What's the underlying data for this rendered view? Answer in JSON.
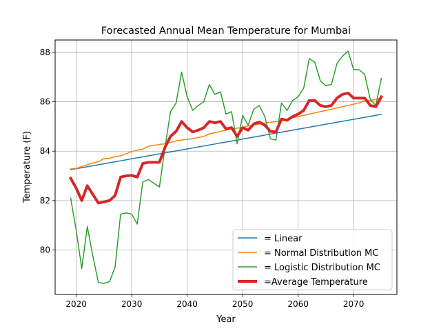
{
  "chart_data": {
    "type": "line",
    "title": "Forecasted Annual Mean Temperature for Mumbai",
    "xlabel": "Year",
    "ylabel": "Temperature (F)",
    "xlim": [
      2016.2,
      2077.8
    ],
    "ylim": [
      78.2,
      88.5
    ],
    "xticks": [
      2020,
      2030,
      2040,
      2050,
      2060,
      2070
    ],
    "yticks": [
      80,
      82,
      84,
      86,
      88
    ],
    "grid": true,
    "legend_position": "lower-right",
    "x": [
      2019,
      2020,
      2021,
      2022,
      2023,
      2024,
      2025,
      2026,
      2027,
      2028,
      2029,
      2030,
      2031,
      2032,
      2033,
      2034,
      2035,
      2036,
      2037,
      2038,
      2039,
      2040,
      2041,
      2042,
      2043,
      2044,
      2045,
      2046,
      2047,
      2048,
      2049,
      2050,
      2051,
      2052,
      2053,
      2054,
      2055,
      2056,
      2057,
      2058,
      2059,
      2060,
      2061,
      2062,
      2063,
      2064,
      2065,
      2066,
      2067,
      2068,
      2069,
      2070,
      2071,
      2072,
      2073,
      2074,
      2075
    ],
    "series": [
      {
        "name": "= Linear",
        "color": "#1f77b4",
        "width": 1.5,
        "values": [
          83.25,
          83.29,
          83.33,
          83.37,
          83.41,
          83.45,
          83.49,
          83.53,
          83.57,
          83.61,
          83.65,
          83.69,
          83.73,
          83.77,
          83.81,
          83.85,
          83.89,
          83.93,
          83.97,
          84.01,
          84.05,
          84.09,
          84.13,
          84.17,
          84.21,
          84.25,
          84.29,
          84.33,
          84.37,
          84.41,
          84.45,
          84.49,
          84.53,
          84.57,
          84.61,
          84.65,
          84.69,
          84.73,
          84.77,
          84.81,
          84.85,
          84.89,
          84.93,
          84.97,
          85.01,
          85.05,
          85.09,
          85.13,
          85.17,
          85.21,
          85.25,
          85.29,
          85.33,
          85.37,
          85.41,
          85.45,
          85.49
        ]
      },
      {
        "name": "= Normal Distribution MC",
        "color": "#ff7f0e",
        "width": 1.5,
        "values": [
          83.28,
          83.3,
          83.38,
          83.45,
          83.52,
          83.57,
          83.7,
          83.71,
          83.78,
          83.81,
          83.9,
          83.98,
          84.04,
          84.08,
          84.2,
          84.23,
          84.27,
          84.3,
          84.35,
          84.42,
          84.45,
          84.48,
          84.51,
          84.55,
          84.6,
          84.7,
          84.75,
          84.8,
          84.85,
          84.9,
          84.93,
          84.96,
          85.02,
          85.06,
          85.1,
          85.14,
          85.17,
          85.2,
          85.22,
          85.3,
          85.35,
          85.4,
          85.45,
          85.5,
          85.55,
          85.6,
          85.65,
          85.7,
          85.75,
          85.8,
          85.85,
          85.9,
          85.95,
          86.05,
          86.05,
          86.1,
          86.15
        ]
      },
      {
        "name": "= Logistic Distribution MC",
        "color": "#2ca02c",
        "width": 1.5,
        "values": [
          82.1,
          80.8,
          79.25,
          80.95,
          79.75,
          78.68,
          78.65,
          78.72,
          79.3,
          81.45,
          81.5,
          81.45,
          81.05,
          82.75,
          82.85,
          82.7,
          82.55,
          84.15,
          85.6,
          85.95,
          87.2,
          86.2,
          85.65,
          85.85,
          86.0,
          86.7,
          86.3,
          86.4,
          85.5,
          85.6,
          84.3,
          85.45,
          85.05,
          85.7,
          85.85,
          85.4,
          84.5,
          84.45,
          85.95,
          85.65,
          86.05,
          86.2,
          86.55,
          87.75,
          87.6,
          86.85,
          86.65,
          86.7,
          87.55,
          87.85,
          88.05,
          87.3,
          87.3,
          87.1,
          86.1,
          85.85,
          86.95
        ]
      },
      {
        "name": "=Average Temperature",
        "color": "#d62728",
        "width": 4,
        "values": [
          82.9,
          82.5,
          82.0,
          82.6,
          82.25,
          81.9,
          81.95,
          82.0,
          82.2,
          82.95,
          83.0,
          83.02,
          82.95,
          83.5,
          83.55,
          83.55,
          83.55,
          84.15,
          84.6,
          84.8,
          85.2,
          84.95,
          84.78,
          84.85,
          84.95,
          85.2,
          85.15,
          85.2,
          84.9,
          84.95,
          84.6,
          84.95,
          84.85,
          85.1,
          85.18,
          85.05,
          84.8,
          84.78,
          85.3,
          85.25,
          85.4,
          85.5,
          85.65,
          86.05,
          86.05,
          85.85,
          85.8,
          85.85,
          86.15,
          86.3,
          86.35,
          86.15,
          86.15,
          86.15,
          85.85,
          85.8,
          86.2
        ]
      }
    ]
  }
}
